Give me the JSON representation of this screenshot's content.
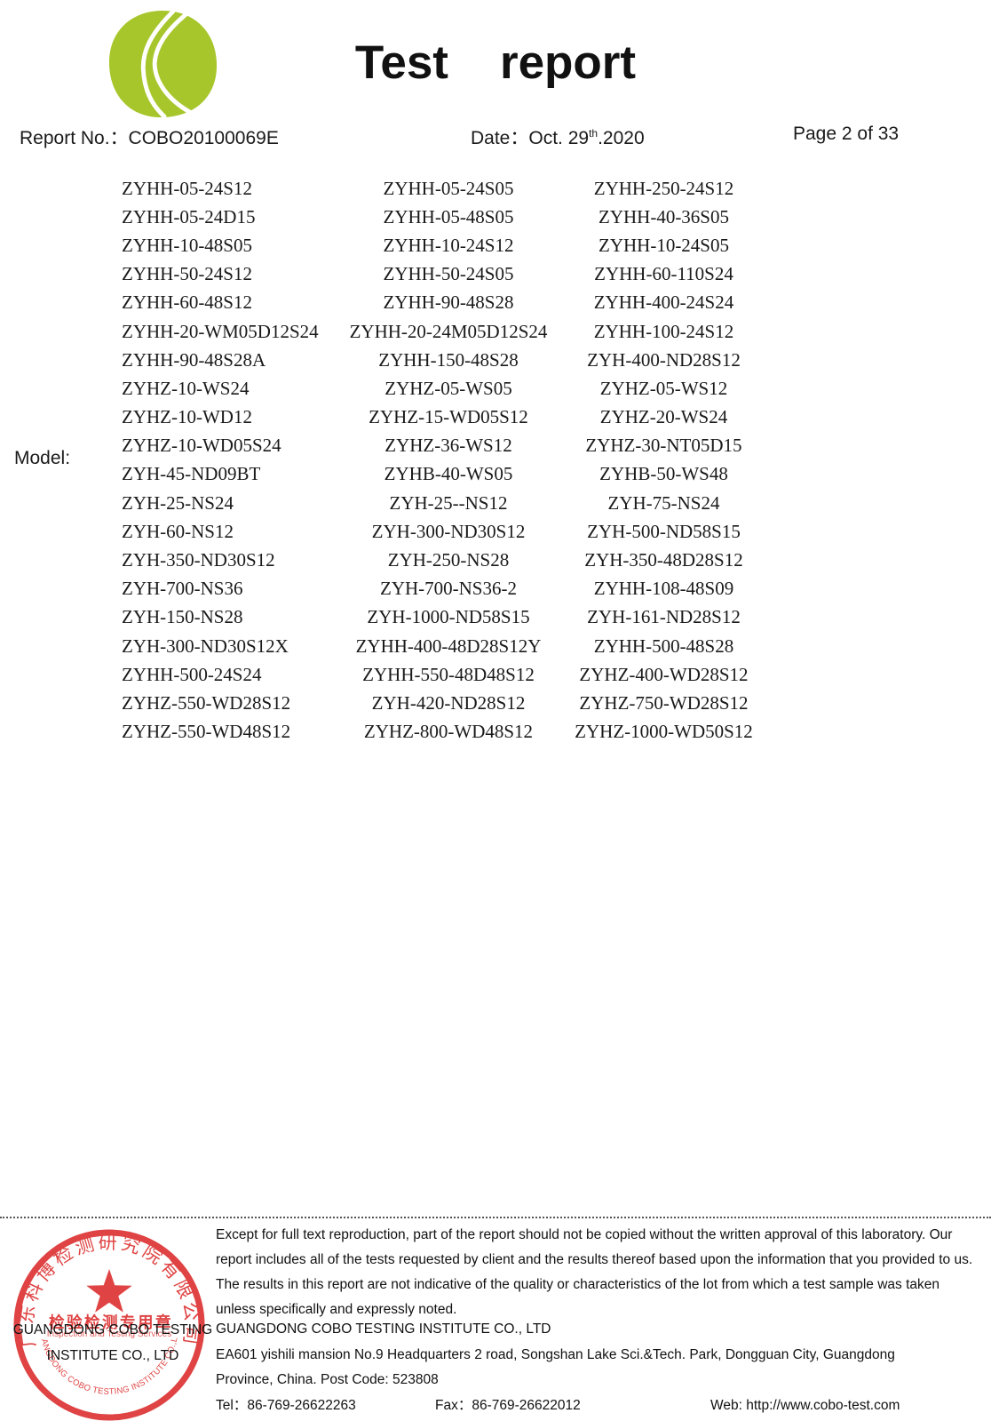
{
  "colors": {
    "stamp_red": "#dd3434",
    "logo_green": "#a7c62b"
  },
  "header": {
    "title_word1": "Test",
    "title_word2": "report",
    "report_no_label": "Report No.：",
    "report_no_value": "COBO20100069E",
    "date_label": "Date：",
    "date_prefix": "Oct. 29",
    "date_superscript": "th",
    "date_suffix": ".2020",
    "page_info": "Page 2 of 33"
  },
  "model_section": {
    "label": "Model:",
    "rows": [
      [
        "ZYHH-05-24S12",
        "ZYHH-05-24S05",
        "ZYHH-250-24S12"
      ],
      [
        "ZYHH-05-24D15",
        "ZYHH-05-48S05",
        "ZYHH-40-36S05"
      ],
      [
        "ZYHH-10-48S05",
        "ZYHH-10-24S12",
        "ZYHH-10-24S05"
      ],
      [
        "ZYHH-50-24S12",
        "ZYHH-50-24S05",
        "ZYHH-60-110S24"
      ],
      [
        "ZYHH-60-48S12",
        "ZYHH-90-48S28",
        "ZYHH-400-24S24"
      ],
      [
        "ZYHH-20-WM05D12S24",
        "ZYHH-20-24M05D12S24",
        "ZYHH-100-24S12"
      ],
      [
        "ZYHH-90-48S28A",
        "ZYHH-150-48S28",
        "ZYH-400-ND28S12"
      ],
      [
        "ZYHZ-10-WS24",
        "ZYHZ-05-WS05",
        "ZYHZ-05-WS12"
      ],
      [
        "ZYHZ-10-WD12",
        "ZYHZ-15-WD05S12",
        "ZYHZ-20-WS24"
      ],
      [
        "ZYHZ-10-WD05S24",
        "ZYHZ-36-WS12",
        "ZYHZ-30-NT05D15"
      ],
      [
        "ZYH-45-ND09BT",
        "ZYHB-40-WS05",
        "ZYHB-50-WS48"
      ],
      [
        "ZYH-25-NS24",
        "ZYH-25--NS12",
        "ZYH-75-NS24"
      ],
      [
        "ZYH-60-NS12",
        "ZYH-300-ND30S12",
        "ZYH-500-ND58S15"
      ],
      [
        "ZYH-350-ND30S12",
        "ZYH-250-NS28",
        "ZYH-350-48D28S12"
      ],
      [
        "ZYH-700-NS36",
        "ZYH-700-NS36-2",
        "ZYHH-108-48S09"
      ],
      [
        "ZYH-150-NS28",
        "ZYH-1000-ND58S15",
        "ZYH-161-ND28S12"
      ],
      [
        "ZYH-300-ND30S12X",
        "ZYHH-400-48D28S12Y",
        "ZYHH-500-48S28"
      ],
      [
        "ZYHH-500-24S24",
        "ZYHH-550-48D48S12",
        "ZYHZ-400-WD28S12"
      ],
      [
        "ZYHZ-550-WD28S12",
        "ZYH-420-ND28S12",
        "ZYHZ-750-WD28S12"
      ],
      [
        "ZYHZ-550-WD48S12",
        "ZYHZ-800-WD48S12",
        "ZYHZ-1000-WD50S12"
      ]
    ]
  },
  "footer": {
    "disclaimer_lines": [
      "Except for full text reproduction, part of the report should not be copied without the written approval of this laboratory. Our",
      "report includes all of the tests requested by client and the results thereof based upon the information that you provided to us.",
      "The results in this report are not indicative of the quality or characteristics of the lot from which a test sample was taken",
      "unless specifically and expressly noted."
    ],
    "company_name": "GUANGDONG COBO TESTING INSTITUTE CO., LTD",
    "address_line1": "EA601 yishili mansion No.9 Headquarters 2 road, Songshan Lake Sci.&Tech. Park, Dongguan City, Guangdong",
    "address_line2": "Province, China. Post Code: 523808",
    "tel_label": "Tel：",
    "tel_value": "86-769-26622263",
    "fax_label": "Fax：",
    "fax_value": "86-769-26622012",
    "web_label": "Web:",
    "web_value": "http://www.cobo-test.com",
    "stamp": {
      "top_text": "广东科博检测研究院有限公司",
      "seal_text": "检验检测专用章",
      "subtitle_text": "Inspection and Testing Services",
      "bottom_text": "GUANGDONG COBO TESTING INSTITUTE CO.,LTD",
      "overlay_line1": "GUANGDONG COBO TESTING",
      "overlay_line2": "INSTITUTE CO., LTD"
    }
  }
}
